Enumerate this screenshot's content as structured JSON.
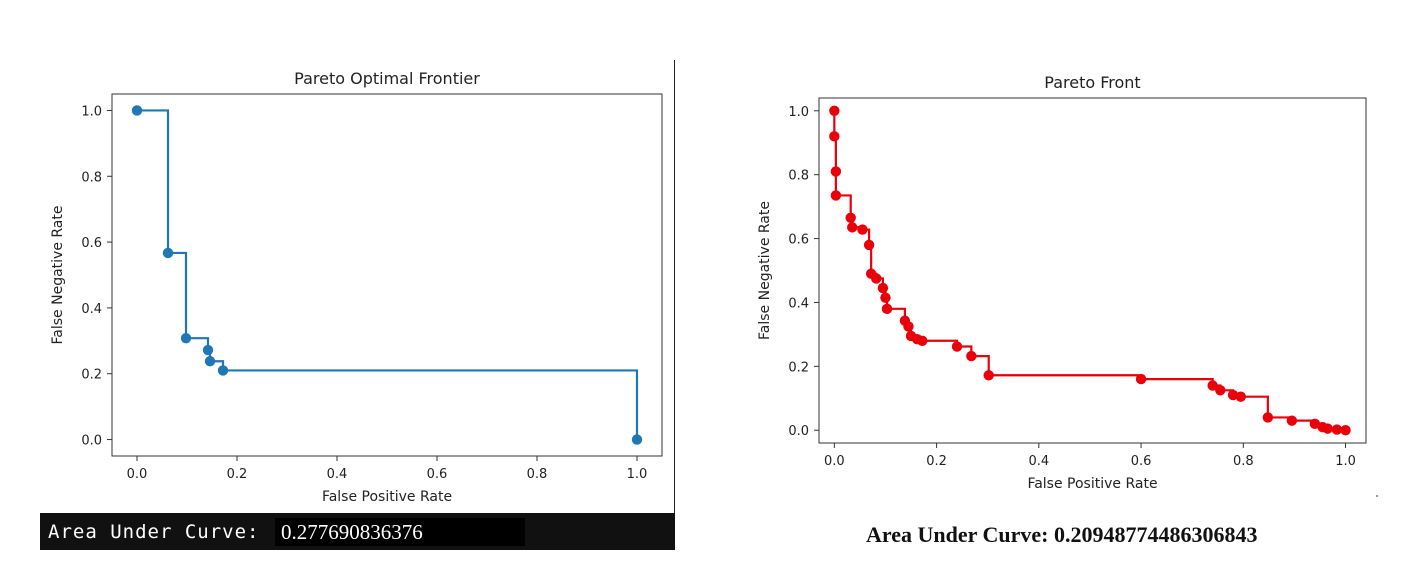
{
  "chart_data": [
    {
      "type": "line",
      "step": true,
      "title": "Pareto Optimal Frontier",
      "xlabel": "False Positive Rate",
      "ylabel": "False Negative Rate",
      "xlim": [
        -0.05,
        1.05
      ],
      "ylim": [
        -0.05,
        1.05
      ],
      "xticks": [
        "0.0",
        "0.2",
        "0.4",
        "0.6",
        "0.8",
        "1.0"
      ],
      "yticks": [
        "0.0",
        "0.2",
        "0.4",
        "0.6",
        "0.8",
        "1.0"
      ],
      "color": "#1f77b4",
      "points": [
        {
          "x": 0.0,
          "y": 1.0
        },
        {
          "x": 0.062,
          "y": 0.567
        },
        {
          "x": 0.098,
          "y": 0.308
        },
        {
          "x": 0.142,
          "y": 0.272
        },
        {
          "x": 0.146,
          "y": 0.238
        },
        {
          "x": 0.172,
          "y": 0.21
        },
        {
          "x": 1.0,
          "y": 0.0
        }
      ]
    },
    {
      "type": "line",
      "step": true,
      "title": "Pareto Front",
      "xlabel": "False Positive Rate",
      "ylabel": "False Negative Rate",
      "xlim": [
        -0.03,
        1.04
      ],
      "ylim": [
        -0.04,
        1.04
      ],
      "xticks": [
        "0.0",
        "0.2",
        "0.4",
        "0.6",
        "0.8",
        "1.0"
      ],
      "yticks": [
        "0.0",
        "0.2",
        "0.4",
        "0.6",
        "0.8",
        "1.0"
      ],
      "color": "#e8000b",
      "points": [
        {
          "x": 0.0,
          "y": 1.0
        },
        {
          "x": 0.0,
          "y": 0.92
        },
        {
          "x": 0.003,
          "y": 0.81
        },
        {
          "x": 0.003,
          "y": 0.735
        },
        {
          "x": 0.032,
          "y": 0.665
        },
        {
          "x": 0.035,
          "y": 0.635
        },
        {
          "x": 0.055,
          "y": 0.628
        },
        {
          "x": 0.068,
          "y": 0.58
        },
        {
          "x": 0.072,
          "y": 0.49
        },
        {
          "x": 0.082,
          "y": 0.475
        },
        {
          "x": 0.095,
          "y": 0.445
        },
        {
          "x": 0.1,
          "y": 0.415
        },
        {
          "x": 0.103,
          "y": 0.38
        },
        {
          "x": 0.138,
          "y": 0.343
        },
        {
          "x": 0.145,
          "y": 0.325
        },
        {
          "x": 0.15,
          "y": 0.295
        },
        {
          "x": 0.162,
          "y": 0.285
        },
        {
          "x": 0.172,
          "y": 0.28
        },
        {
          "x": 0.24,
          "y": 0.262
        },
        {
          "x": 0.268,
          "y": 0.232
        },
        {
          "x": 0.302,
          "y": 0.172
        },
        {
          "x": 0.6,
          "y": 0.16
        },
        {
          "x": 0.74,
          "y": 0.14
        },
        {
          "x": 0.755,
          "y": 0.125
        },
        {
          "x": 0.78,
          "y": 0.11
        },
        {
          "x": 0.795,
          "y": 0.105
        },
        {
          "x": 0.848,
          "y": 0.04
        },
        {
          "x": 0.895,
          "y": 0.03
        },
        {
          "x": 0.94,
          "y": 0.02
        },
        {
          "x": 0.955,
          "y": 0.01
        },
        {
          "x": 0.965,
          "y": 0.005
        },
        {
          "x": 0.983,
          "y": 0.002
        },
        {
          "x": 1.0,
          "y": 0.0
        }
      ]
    }
  ],
  "left_auc": {
    "label": "Area Under Curve:",
    "value": "0.277690836376"
  },
  "right_auc": {
    "text": "Area Under Curve: 0.20948774486306843"
  }
}
